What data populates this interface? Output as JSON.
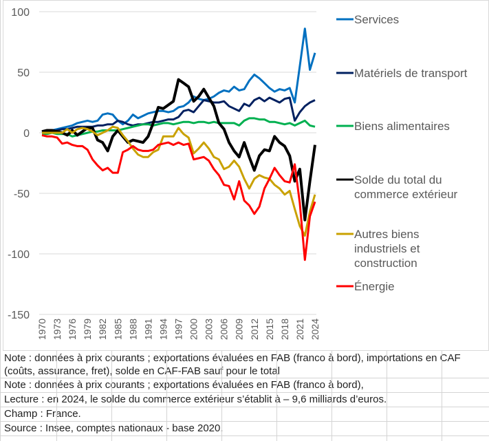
{
  "chart_data": {
    "type": "line",
    "title": "",
    "xlabel": "",
    "ylabel": "",
    "ylim": [
      -150,
      100
    ],
    "yticks": [
      100,
      50,
      0,
      -50,
      -100,
      -150
    ],
    "x": [
      1970,
      1971,
      1972,
      1973,
      1974,
      1975,
      1976,
      1977,
      1978,
      1979,
      1980,
      1981,
      1982,
      1983,
      1984,
      1985,
      1986,
      1987,
      1988,
      1989,
      1990,
      1991,
      1992,
      1993,
      1994,
      1995,
      1996,
      1997,
      1998,
      1999,
      2000,
      2001,
      2002,
      2003,
      2004,
      2005,
      2006,
      2007,
      2008,
      2009,
      2010,
      2011,
      2012,
      2013,
      2014,
      2015,
      2016,
      2017,
      2018,
      2019,
      2020,
      2021,
      2022,
      2023,
      2024
    ],
    "xticks": [
      "1970",
      "1973",
      "1976",
      "1979",
      "1982",
      "1985",
      "1988",
      "1991",
      "1994",
      "1997",
      "2000",
      "2003",
      "2006",
      "2009",
      "2012",
      "2015",
      "2018",
      "2021",
      "2024"
    ],
    "grid": true,
    "legend_position": "right",
    "series": [
      {
        "name": "Services",
        "color": "#0070C0",
        "values": [
          1,
          2,
          2,
          3,
          4,
          5,
          6,
          8,
          9,
          10,
          9,
          10,
          15,
          16,
          15,
          10,
          7,
          10,
          15,
          12,
          14,
          16,
          17,
          18,
          18,
          17,
          18,
          21,
          22,
          25,
          30,
          28,
          27,
          28,
          30,
          33,
          35,
          34,
          38,
          35,
          36,
          43,
          48,
          45,
          41,
          37,
          34,
          36,
          35,
          37,
          25,
          55,
          86,
          52,
          66
        ]
      },
      {
        "name": "Matériels de transport",
        "color": "#002060",
        "values": [
          0,
          1,
          1,
          2,
          3,
          3,
          4,
          5,
          5,
          5,
          5,
          6,
          6,
          7,
          7,
          10,
          9,
          7,
          6,
          7,
          7,
          8,
          9,
          9,
          10,
          11,
          11,
          13,
          18,
          19,
          17,
          22,
          27,
          26,
          25,
          25,
          26,
          22,
          20,
          18,
          24,
          22,
          27,
          29,
          26,
          29,
          27,
          25,
          28,
          29,
          10,
          17,
          22,
          25,
          27
        ]
      },
      {
        "name": "Biens alimentaires",
        "color": "#00B050",
        "values": [
          -1,
          -1,
          0,
          -1,
          -1,
          -1,
          -3,
          -2,
          -1,
          0,
          1,
          1,
          2,
          2,
          2,
          2,
          3,
          4,
          5,
          6,
          7,
          7,
          6,
          7,
          8,
          8,
          7,
          8,
          9,
          9,
          8,
          9,
          9,
          8,
          9,
          8,
          8,
          8,
          8,
          6,
          10,
          12,
          12,
          11,
          11,
          9,
          9,
          8,
          7,
          8,
          6,
          8,
          10,
          6,
          5
        ]
      },
      {
        "name": "Solde du total du commerce extérieur",
        "color": "#000000",
        "values": [
          1,
          2,
          2,
          1,
          0,
          -2,
          2,
          -2,
          1,
          4,
          4,
          -6,
          -8,
          -15,
          -3,
          2,
          -3,
          -8,
          -6,
          -7,
          -8,
          -3,
          8,
          21,
          20,
          23,
          26,
          44,
          41,
          38,
          26,
          30,
          36,
          29,
          22,
          8,
          3,
          -8,
          -15,
          -20,
          -8,
          -20,
          -31,
          -19,
          -14,
          -15,
          -3,
          -8,
          -11,
          -19,
          -40,
          -30,
          -72,
          -40,
          -10
        ]
      },
      {
        "name": "Autres biens industriels et construction",
        "color": "#C9A100",
        "values": [
          0,
          0,
          0,
          0,
          0,
          3,
          0,
          3,
          4,
          3,
          1,
          -2,
          0,
          2,
          5,
          4,
          -2,
          -7,
          -13,
          -18,
          -20,
          -20,
          -16,
          -14,
          -3,
          -3,
          -3,
          4,
          -1,
          -4,
          -17,
          -13,
          -8,
          -13,
          -20,
          -22,
          -30,
          -28,
          -23,
          -28,
          -38,
          -46,
          -38,
          -35,
          -37,
          -38,
          -43,
          -46,
          -51,
          -48,
          -63,
          -77,
          -85,
          -65,
          -51
        ]
      },
      {
        "name": "Énergie",
        "color": "#FF0000",
        "values": [
          -2,
          -3,
          -3,
          -4,
          -9,
          -8,
          -10,
          -11,
          -11,
          -14,
          -22,
          -27,
          -31,
          -29,
          -33,
          -33,
          -16,
          -14,
          -11,
          -14,
          -15,
          -15,
          -14,
          -10,
          -9,
          -8,
          -10,
          -8,
          -10,
          -9,
          -22,
          -21,
          -20,
          -23,
          -30,
          -35,
          -43,
          -44,
          -55,
          -40,
          -56,
          -60,
          -67,
          -61,
          -46,
          -38,
          -29,
          -35,
          -40,
          -41,
          -26,
          -58,
          -105,
          -69,
          -57
        ]
      }
    ]
  },
  "legend": [
    {
      "lines": [
        "Services"
      ],
      "color": "#0070C0"
    },
    {
      "lines": [
        "Matériels de transport"
      ],
      "color": "#002060"
    },
    {
      "lines": [
        "Biens alimentaires"
      ],
      "color": "#00B050"
    },
    {
      "lines": [
        "Solde du total du",
        "commerce extérieur"
      ],
      "color": "#000000"
    },
    {
      "lines": [
        "Autres biens",
        "industriels et",
        "construction"
      ],
      "color": "#C9A100"
    },
    {
      "lines": [
        "Énergie"
      ],
      "color": "#FF0000"
    }
  ],
  "notes": {
    "note_full": "Note : données à prix courants ; exportations évaluées en FAB (franco à bord), importations en CAF (coûts, assurance, fret), solde en CAF-FAB sauf pour le total",
    "note_short": "Note : données à prix courants ; exportations évaluées en FAB (franco à bord),",
    "lecture": "Lecture : en 2024, le solde du commerce extérieur s’établit à – 9,6 milliards d’euros.",
    "champ": "Champ : France.",
    "source": "Source : Insee, comptes nationaux - base 2020."
  }
}
